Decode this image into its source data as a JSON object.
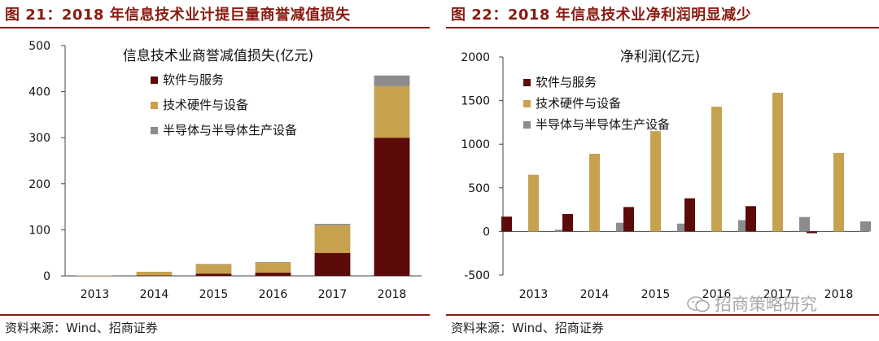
{
  "left": {
    "figure_title": "图 21：2018 年信息技术业计提巨量商誉减值损失",
    "source": "资料来源：Wind、招商证券"
  },
  "right": {
    "figure_title": "图 22：2018 年信息技术业净利润明显减少",
    "source": "资料来源：Wind、招商证券"
  },
  "watermark": "招商策略研究",
  "colors": {
    "accent": "#8b1a10",
    "series_software": "#5c0a0a",
    "series_hardware": "#c7a24e",
    "series_semi": "#8c8c8c"
  },
  "chart_data": [
    {
      "type": "bar",
      "stacked": true,
      "title": "信息技术业商誉减值损失(亿元)",
      "categories": [
        "2013",
        "2014",
        "2015",
        "2016",
        "2017",
        "2018"
      ],
      "series": [
        {
          "name": "软件与服务",
          "values": [
            0,
            1,
            5,
            7,
            50,
            300
          ]
        },
        {
          "name": "技术硬件与设备",
          "values": [
            1,
            8,
            20,
            22,
            60,
            112
          ]
        },
        {
          "name": "半导体与半导体生产设备",
          "values": [
            0,
            0,
            1,
            1,
            3,
            23
          ]
        }
      ],
      "ylim": [
        0,
        500
      ],
      "yticks": [
        0,
        100,
        200,
        300,
        400,
        500
      ],
      "legend": "top-left",
      "grid": false
    },
    {
      "type": "bar",
      "stacked": false,
      "title": "净利润(亿元)",
      "categories": [
        "2013",
        "2014",
        "2015",
        "2016",
        "2017",
        "2018"
      ],
      "series": [
        {
          "name": "软件与服务",
          "values": [
            170,
            200,
            280,
            380,
            290,
            -20
          ]
        },
        {
          "name": "技术硬件与设备",
          "values": [
            650,
            890,
            1150,
            1430,
            1590,
            900
          ]
        },
        {
          "name": "半导体与半导体生产设备",
          "values": [
            20,
            100,
            90,
            130,
            165,
            115
          ]
        }
      ],
      "ylim": [
        -500,
        2000
      ],
      "yticks": [
        -500,
        0,
        500,
        1000,
        1500,
        2000
      ],
      "legend": "top-left",
      "grid": false
    }
  ]
}
